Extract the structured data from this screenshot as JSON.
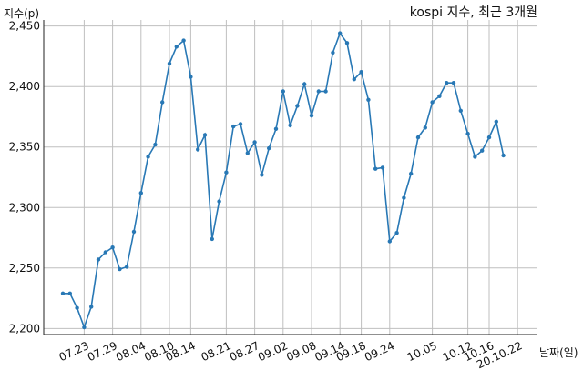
{
  "chart_data": {
    "type": "line",
    "title": "kospi 지수, 최근 3개월",
    "ylabel": "지수(p)",
    "xlabel": "날짜(일)",
    "ylim": [
      2195,
      2455
    ],
    "yticks": [
      {
        "value": 2200,
        "label": "2,200"
      },
      {
        "value": 2250,
        "label": "2,250"
      },
      {
        "value": 2300,
        "label": "2,300"
      },
      {
        "value": 2350,
        "label": "2,350"
      },
      {
        "value": 2400,
        "label": "2,400"
      },
      {
        "value": 2450,
        "label": "2,450"
      }
    ],
    "xtick_labels": [
      "07.23",
      "07.29",
      "08.04",
      "08.10",
      "08.14",
      "08.21",
      "08.27",
      "09.02",
      "09.08",
      "09.14",
      "09.18",
      "09.24",
      "10.05",
      "10.12",
      "10.16",
      "20.10.22"
    ],
    "xtick_index": [
      3,
      7,
      11,
      15,
      18,
      23,
      27,
      31,
      35,
      39,
      42,
      46,
      52,
      57,
      60,
      64
    ],
    "grid": true,
    "color": "#2878b5",
    "values": [
      2229,
      2229,
      2217,
      2201,
      2218,
      2257,
      2263,
      2267,
      2249,
      2251,
      2280,
      2312,
      2342,
      2352,
      2387,
      2419,
      2433,
      2438,
      2408,
      2348,
      2360,
      2274,
      2305,
      2329,
      2367,
      2369,
      2345,
      2354,
      2327,
      2349,
      2365,
      2396,
      2368,
      2384,
      2402,
      2376,
      2396,
      2396,
      2428,
      2444,
      2436,
      2406,
      2412,
      2389,
      2332,
      2333,
      2272,
      2279,
      2308,
      2328,
      2358,
      2366,
      2387,
      2392,
      2403,
      2403,
      2380,
      2361,
      2342,
      2347,
      2358,
      2371,
      2343
    ]
  }
}
